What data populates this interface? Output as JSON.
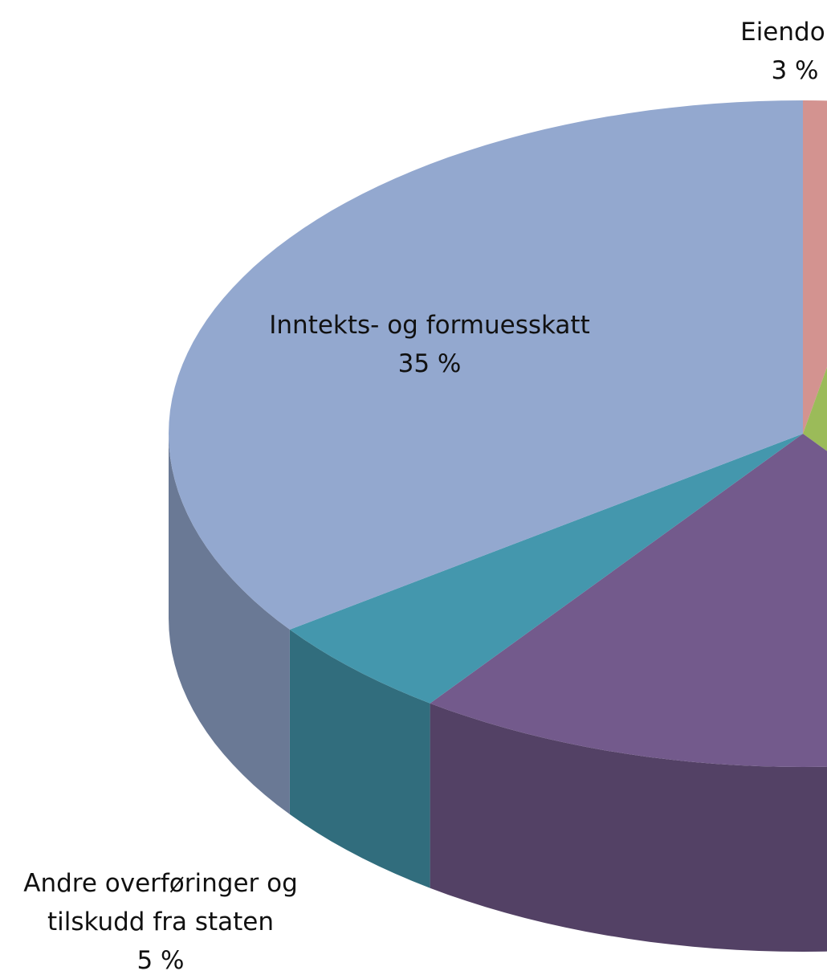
{
  "chart_data": {
    "type": "pie3d",
    "categories": [
      "Eiendom",
      null,
      null,
      "Andre overføringer og tilskudd fra staten",
      "Inntekts- og formuesskatt"
    ],
    "values": [
      3,
      37,
      20,
      5,
      35
    ],
    "value_labels": [
      "3 %",
      null,
      null,
      "5 %",
      "35 %"
    ],
    "colors": [
      "#d39390",
      "#9bbb59",
      "#735a8c",
      "#4497ad",
      "#93a8cf"
    ]
  }
}
